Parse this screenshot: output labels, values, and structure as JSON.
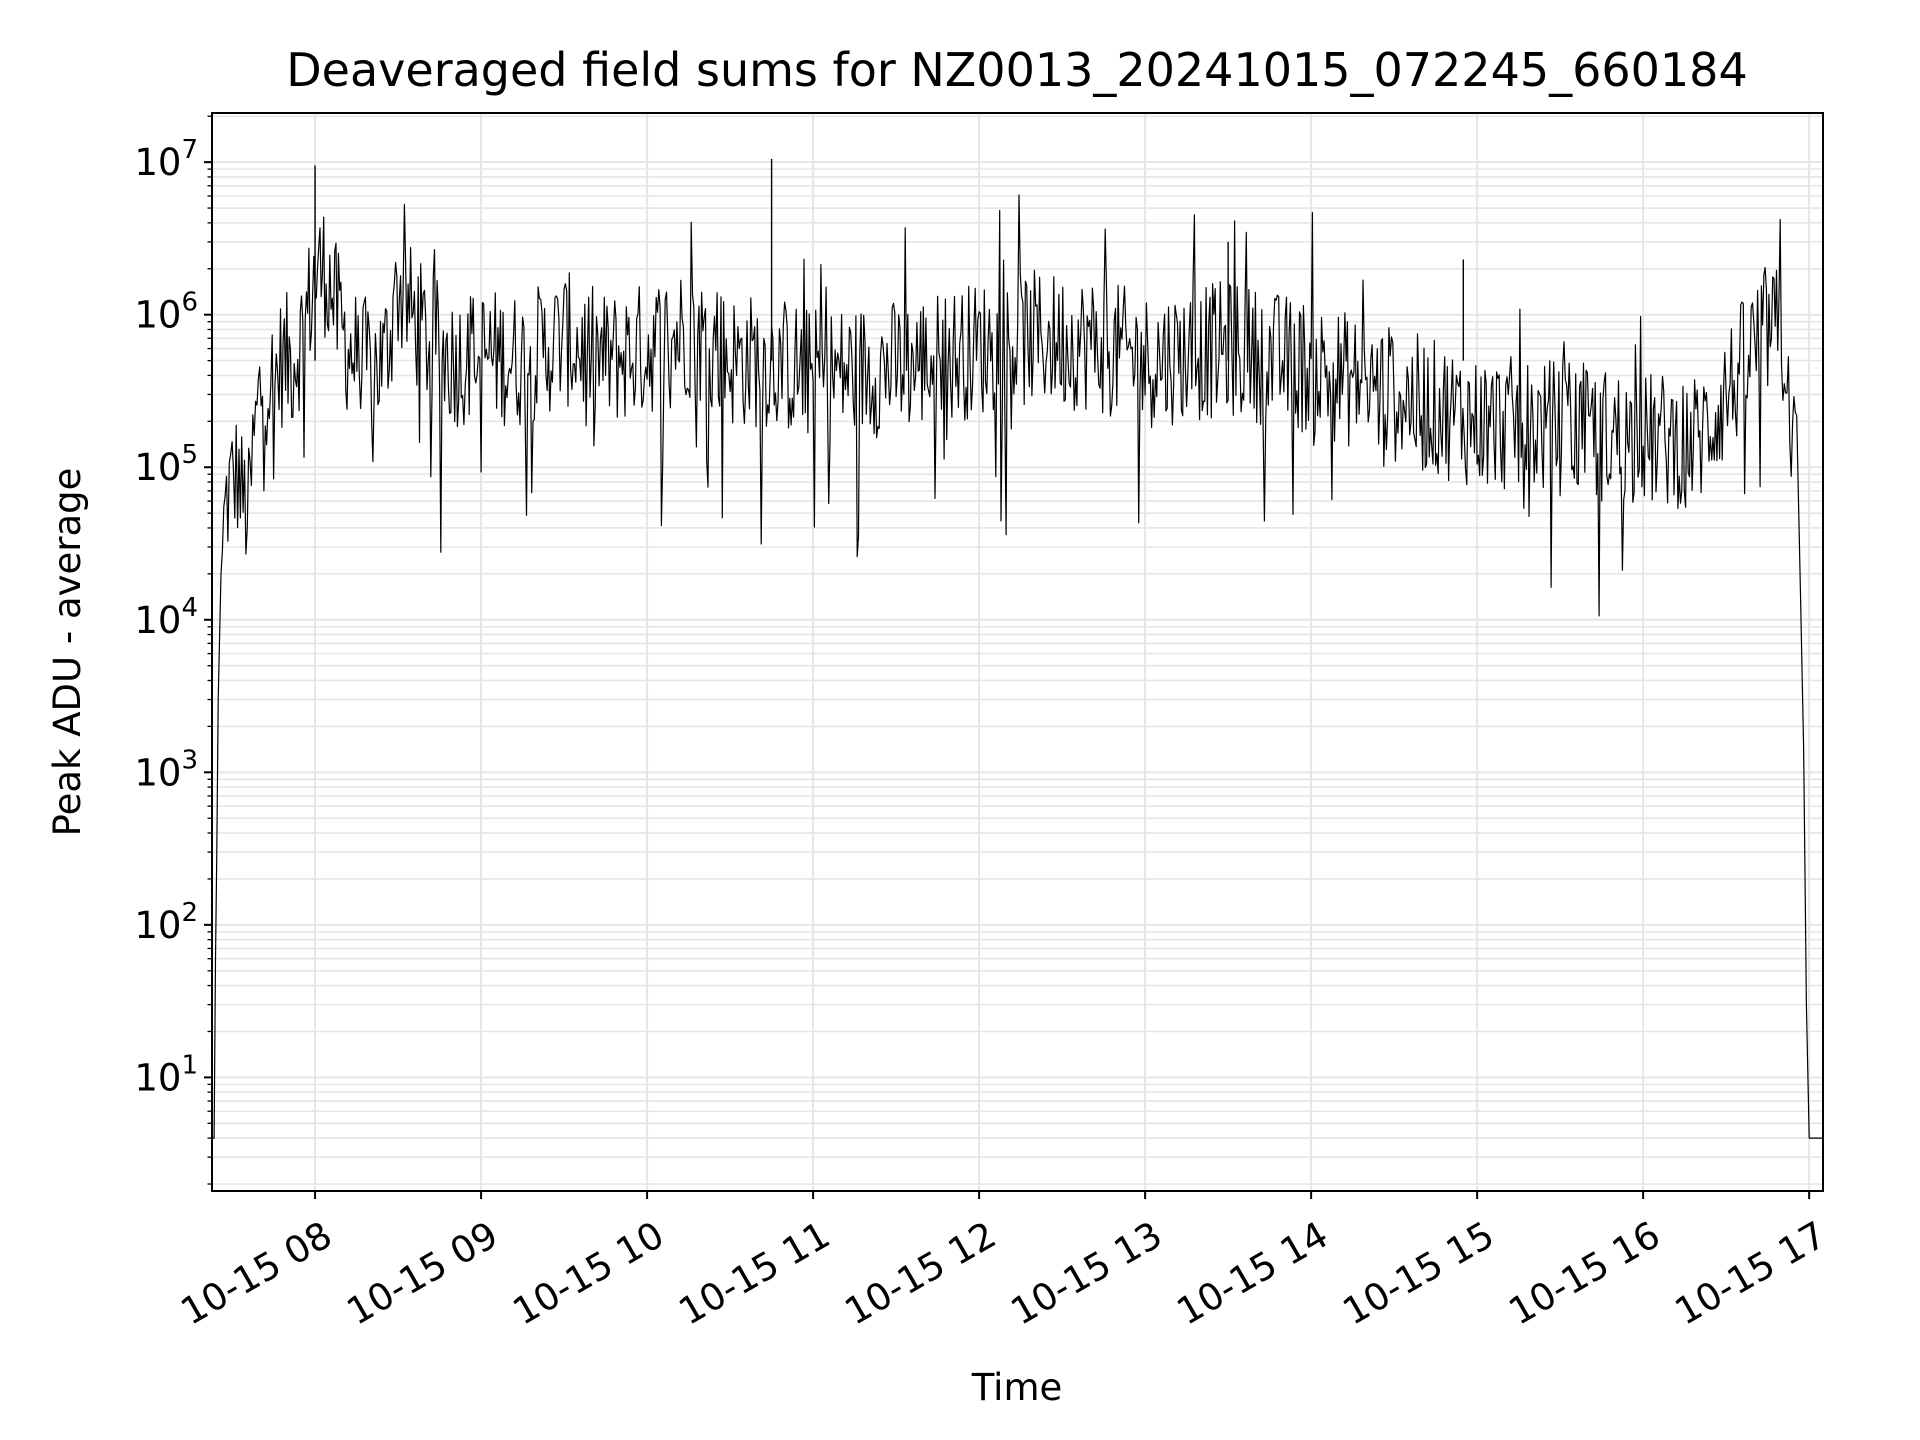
{
  "chart_data": {
    "type": "line",
    "title": "Deaveraged field sums for NZ0013_20241015_072245_660184",
    "xlabel": "Time",
    "ylabel": "Peak ADU - average",
    "x_scale": "time",
    "y_scale": "log",
    "xlim": [
      "2024-10-15 07:22:45",
      "2024-10-15 17:05:00"
    ],
    "ylim": [
      1.8,
      21000000.0
    ],
    "x_ticks": [
      "10-15 08",
      "10-15 09",
      "10-15 10",
      "10-15 11",
      "10-15 12",
      "10-15 13",
      "10-15 14",
      "10-15 15",
      "10-15 16",
      "10-15 17"
    ],
    "y_ticks": [
      {
        "base": "10",
        "exp": "1"
      },
      {
        "base": "10",
        "exp": "2"
      },
      {
        "base": "10",
        "exp": "3"
      },
      {
        "base": "10",
        "exp": "4"
      },
      {
        "base": "10",
        "exp": "5"
      },
      {
        "base": "10",
        "exp": "6"
      },
      {
        "base": "10",
        "exp": "7"
      }
    ],
    "grid": true,
    "line_color": "#000000",
    "grid_color": "#e6e6e6",
    "series": [
      {
        "x": [
          "2024-10-15 07:22:45",
          "2024-10-15 07:23:30",
          "2024-10-15 07:24:00",
          "2024-10-15 07:24:30",
          "2024-10-15 07:25:00",
          "2024-10-15 07:26:00",
          "2024-10-15 07:27:00",
          "2024-10-15 07:28:00",
          "2024-10-15 07:30:00",
          "2024-10-15 07:32:00",
          "2024-10-15 07:34:00",
          "2024-10-15 07:36:00",
          "2024-10-15 07:38:00",
          "2024-10-15 07:40:00",
          "2024-10-15 07:42:00",
          "2024-10-15 07:45:00",
          "2024-10-15 07:48:00",
          "2024-10-15 07:52:00",
          "2024-10-15 07:56:00",
          "2024-10-15 08:00:00",
          "2024-10-15 08:04:00",
          "2024-10-15 08:08:00",
          "2024-10-15 08:12:00",
          "2024-10-15 08:16:00",
          "2024-10-15 08:20:00",
          "2024-10-15 08:25:00",
          "2024-10-15 08:30:00",
          "2024-10-15 08:35:00",
          "2024-10-15 08:40:00",
          "2024-10-15 08:45:00",
          "2024-10-15 08:50:00",
          "2024-10-15 09:00:00",
          "2024-10-15 09:15:00",
          "2024-10-15 09:30:00",
          "2024-10-15 09:45:00",
          "2024-10-15 10:00:00",
          "2024-10-15 10:15:00",
          "2024-10-15 10:30:00",
          "2024-10-15 10:45:00",
          "2024-10-15 11:00:00",
          "2024-10-15 11:30:00",
          "2024-10-15 12:00:00",
          "2024-10-15 12:20:00",
          "2024-10-15 12:40:00",
          "2024-10-15 13:00:00",
          "2024-10-15 13:30:00",
          "2024-10-15 14:00:00",
          "2024-10-15 14:30:00",
          "2024-10-15 15:00:00",
          "2024-10-15 15:30:00",
          "2024-10-15 16:00:00",
          "2024-10-15 16:20:00",
          "2024-10-15 16:30:00",
          "2024-10-15 16:40:00",
          "2024-10-15 16:45:00",
          "2024-10-15 16:50:00",
          "2024-10-15 16:52:00",
          "2024-10-15 16:54:00",
          "2024-10-15 16:56:00",
          "2024-10-15 16:58:00",
          "2024-10-15 16:59:00",
          "2024-10-15 17:00:00",
          "2024-10-15 17:00:30",
          "2024-10-15 17:01:00",
          "2024-10-15 17:05:00"
        ],
        "y": [
          4,
          4,
          60,
          300,
          3000,
          20000,
          40000,
          60000,
          80000,
          90000,
          60000,
          50000,
          150000,
          300000,
          400000,
          350000,
          500000,
          500000,
          800000,
          1800000,
          2000000,
          1000000,
          600000,
          500000,
          450000,
          500000,
          1500000,
          1000000,
          700000,
          600000,
          500000,
          550000,
          500000,
          700000,
          500000,
          600000,
          800000,
          500000,
          500000,
          400000,
          450000,
          600000,
          700000,
          650000,
          500000,
          600000,
          450000,
          300000,
          200000,
          180000,
          150000,
          150000,
          300000,
          600000,
          800000,
          700000,
          500000,
          150000,
          80000,
          1500,
          30,
          4,
          4,
          4,
          4
        ]
      }
    ]
  }
}
